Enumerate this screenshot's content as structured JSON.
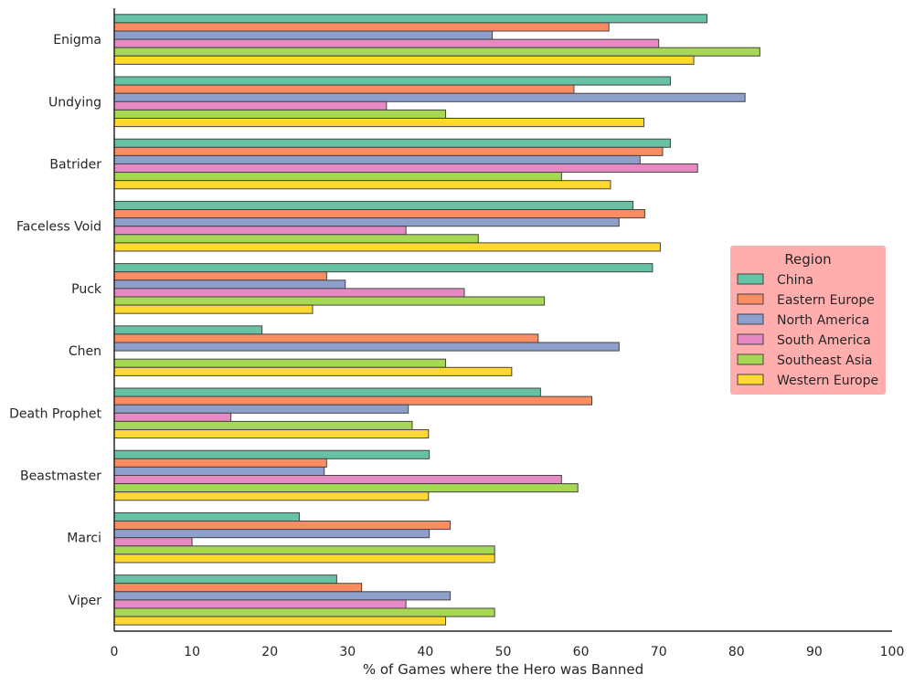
{
  "chart_data": {
    "type": "bar",
    "orientation": "horizontal",
    "title": "",
    "xlabel": "% of Games where the Hero was Banned",
    "ylabel": "",
    "xlim": [
      0,
      100
    ],
    "xticks": [
      "0",
      "10",
      "20",
      "30",
      "40",
      "50",
      "60",
      "70",
      "80",
      "90",
      "100"
    ],
    "grid": false,
    "legend": {
      "title": "Region",
      "position": "right",
      "background": "#ffadad"
    },
    "categories": [
      "Enigma",
      "Undying",
      "Batrider",
      "Faceless Void",
      "Puck",
      "Chen",
      "Death Prophet",
      "Beastmaster",
      "Marci",
      "Viper"
    ],
    "series": [
      {
        "name": "China",
        "color": "#66c2a5",
        "values": [
          76.2,
          71.5,
          71.5,
          66.7,
          69.2,
          19.0,
          54.8,
          40.5,
          23.8,
          28.6
        ]
      },
      {
        "name": "Eastern Europe",
        "color": "#fc8d62",
        "values": [
          63.6,
          59.1,
          70.5,
          68.2,
          27.3,
          54.5,
          61.4,
          27.3,
          43.2,
          31.8
        ]
      },
      {
        "name": "North America",
        "color": "#8da0cb",
        "values": [
          48.6,
          81.1,
          67.6,
          64.9,
          29.7,
          64.9,
          37.8,
          27.0,
          40.5,
          43.2
        ]
      },
      {
        "name": "South America",
        "color": "#e78ac3",
        "values": [
          70.0,
          35.0,
          75.0,
          37.5,
          45.0,
          0,
          15.0,
          57.5,
          10.0,
          37.5
        ]
      },
      {
        "name": "Southeast Asia",
        "color": "#a6d854",
        "values": [
          83.0,
          42.6,
          57.5,
          46.8,
          55.3,
          42.6,
          38.3,
          59.6,
          48.9,
          48.9
        ]
      },
      {
        "name": "Western Europe",
        "color": "#ffd92f",
        "values": [
          74.5,
          68.1,
          63.8,
          70.2,
          25.5,
          51.1,
          40.4,
          40.4,
          48.9,
          42.6
        ]
      }
    ]
  }
}
